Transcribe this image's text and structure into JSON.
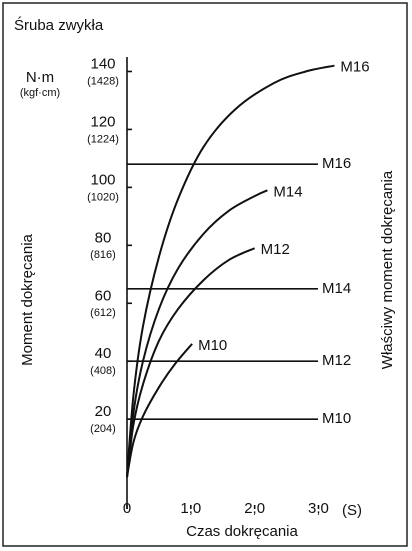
{
  "chart_data": {
    "type": "line",
    "title": "Śruba zwykła",
    "y_unit": "N·m",
    "y_unit_secondary": "(kgf·cm)",
    "ylabel": "Moment dokręcania",
    "y2label": "Właściwy moment dokręcania",
    "xlabel": "Czas dokręcania",
    "x_unit": "(S)",
    "xlim": [
      0,
      3.4
    ],
    "ylim": [
      -11,
      145
    ],
    "xticks": [
      0,
      {
        "value": 1.0,
        "label": "1,0"
      },
      {
        "value": 2.0,
        "label": "2,0"
      },
      {
        "value": 3.0,
        "label": "3,0"
      }
    ],
    "yticks": [
      20,
      40,
      60,
      80,
      100,
      120,
      140
    ],
    "ytick_sublabels": [
      "(204)",
      "(408)",
      "(612)",
      "(816)",
      "(1020)",
      "(1224)",
      "(1428)"
    ],
    "color": "#111111",
    "series": [
      {
        "name": "M16",
        "x": [
          0,
          0.1,
          0.25,
          0.5,
          0.8,
          1.2,
          1.7,
          2.3,
          2.8,
          3.25
        ],
        "values": [
          0,
          28,
          52,
          76,
          96,
          114,
          127,
          136,
          140,
          142
        ]
      },
      {
        "name": "M14",
        "x": [
          0,
          0.1,
          0.25,
          0.5,
          0.8,
          1.2,
          1.6,
          2.0,
          2.2
        ],
        "values": [
          0,
          22,
          40,
          58,
          72,
          84,
          92,
          97,
          99
        ]
      },
      {
        "name": "M12",
        "x": [
          0,
          0.1,
          0.25,
          0.5,
          0.8,
          1.2,
          1.6,
          2.0
        ],
        "values": [
          0,
          18,
          32,
          47,
          58,
          68,
          75,
          79
        ]
      },
      {
        "name": "M10",
        "x": [
          0,
          0.1,
          0.25,
          0.5,
          0.75,
          1.02
        ],
        "values": [
          0,
          12,
          21,
          31,
          39,
          46
        ]
      }
    ],
    "reference_lines": [
      {
        "name": "M16",
        "value": 108
      },
      {
        "name": "M14",
        "value": 65
      },
      {
        "name": "M12",
        "value": 40
      },
      {
        "name": "M10",
        "value": 20
      }
    ]
  }
}
